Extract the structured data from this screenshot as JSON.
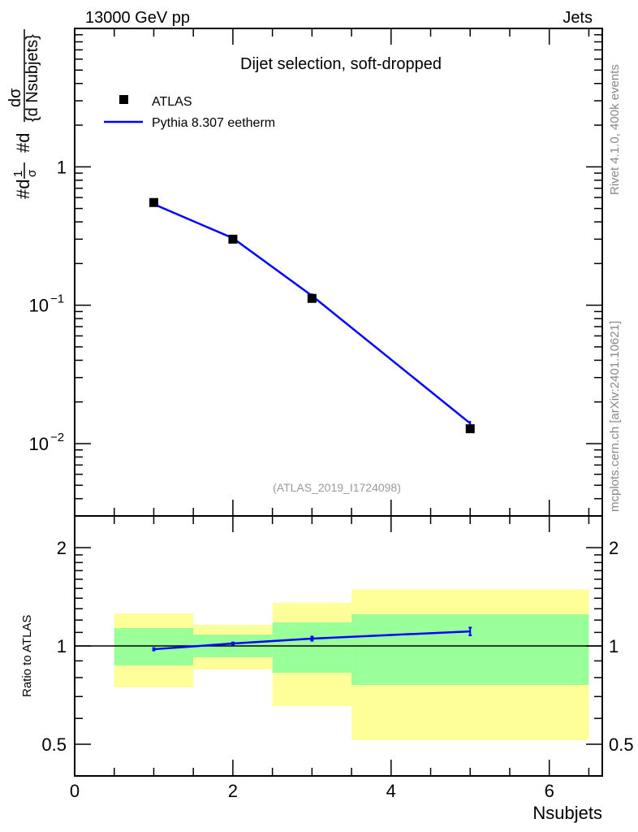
{
  "header": {
    "left": "13000 GeV pp",
    "right": "Jets"
  },
  "side_text": {
    "rivet": "Rivet 4.1.0,  400k events",
    "mcplots": "mcplots.cern.ch [arXiv:2401.10621]"
  },
  "colors": {
    "data": "#000000",
    "mc": "#0000ff",
    "band_inner": "#99ff99",
    "band_outer": "#ffff99"
  },
  "chart_data": [
    {
      "type": "scatter",
      "title": "Dijet selection, soft-dropped",
      "analysis_label": "(ATLAS_2019_I1724098)",
      "ylabel": "#d¹/σ #d dσ/{d Nsubjets}",
      "ylabel_parts": {
        "a": "#d",
        "b": "1",
        "c": "σ",
        "d": "#d",
        "e": "dσ",
        "f": "{d Nsubjets}"
      },
      "yscale": "log",
      "ylim": [
        0.003,
        10
      ],
      "xlim": [
        0,
        6.67
      ],
      "ytick_labels": [
        {
          "value": 1,
          "label": "1"
        },
        {
          "value": 0.1,
          "base": "10",
          "exp": "−1"
        },
        {
          "value": 0.01,
          "base": "10",
          "exp": "−2"
        }
      ],
      "legend_position": "top-left",
      "series": [
        {
          "name": "ATLAS",
          "style": "markers",
          "x": [
            1,
            2,
            3,
            5
          ],
          "y": [
            0.552,
            0.3,
            0.112,
            0.0128
          ]
        },
        {
          "name": "Pythia 8.307 eetherm",
          "style": "line",
          "x": [
            1,
            2,
            3,
            5
          ],
          "y": [
            0.537,
            0.305,
            0.117,
            0.014
          ]
        }
      ]
    },
    {
      "type": "line",
      "ylabel": "Ratio to ATLAS",
      "xlabel": "Nsubjets",
      "yscale": "log",
      "ylim": [
        0.4,
        2.5
      ],
      "xlim": [
        0,
        6.67
      ],
      "xtick_labels": [
        "0",
        "2",
        "4",
        "6"
      ],
      "ytick_labels": [
        "2",
        "1",
        "0.5"
      ],
      "bands": [
        {
          "x": [
            0.5,
            1.5
          ],
          "inner": [
            0.872,
            1.134
          ],
          "outer": [
            0.747,
            1.257
          ]
        },
        {
          "x": [
            1.5,
            2.5
          ],
          "inner": [
            0.923,
            1.083
          ],
          "outer": [
            0.847,
            1.16
          ]
        },
        {
          "x": [
            2.5,
            3.5
          ],
          "inner": [
            0.828,
            1.18
          ],
          "outer": [
            0.655,
            1.355
          ]
        },
        {
          "x": [
            3.5,
            6.5
          ],
          "inner": [
            0.76,
            1.25
          ],
          "outer": [
            0.515,
            1.49
          ]
        }
      ],
      "series": [
        {
          "name": "Pythia 8.307 eetherm / ATLAS",
          "x": [
            1,
            2,
            3,
            5
          ],
          "y": [
            0.977,
            1.017,
            1.053,
            1.108
          ],
          "err": [
            0.008,
            0.008,
            0.015,
            0.03
          ]
        }
      ]
    }
  ]
}
